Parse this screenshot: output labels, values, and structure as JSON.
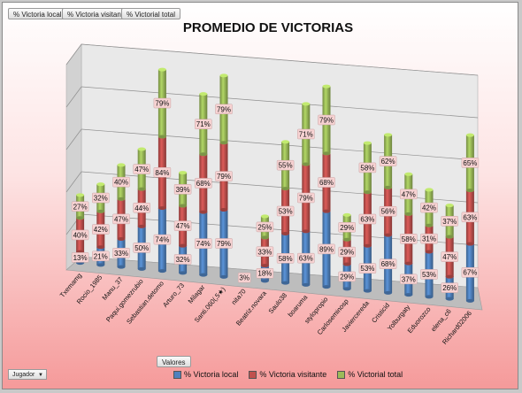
{
  "field_buttons": [
    "% Victoria local",
    "% Victoria visitante",
    "% Victorial total"
  ],
  "values_button": "Valores",
  "filter_button": "Jugador",
  "filter_arrow": "▼",
  "chart_data": {
    "type": "bar",
    "stacked": true,
    "title": "PROMEDIO DE VICTORIAS",
    "categories": [
      "Txemamg",
      "Rocio_1985",
      "Manu_37",
      "Paqui.gomezrubio",
      "Sebastian.detomo",
      "Arturo_73",
      "Milagar",
      "Santi.060(,5★)",
      "nita70",
      "Beatriz.novara",
      "Saulo38",
      "boaruma",
      "stylopropio",
      "Carloseminosp",
      "Javiercereda",
      "Cristicid",
      "Yolburgaty",
      "Eduorozco",
      "elena_c6",
      "Richard02006"
    ],
    "series": [
      {
        "name": "% Victoria local",
        "color": "#4f81bd",
        "values": [
          13,
          21,
          33,
          50,
          74,
          32,
          74,
          79,
          3,
          18,
          58,
          63,
          89,
          29,
          53,
          68,
          37,
          53,
          26,
          67
        ]
      },
      {
        "name": "% Victoria visitante",
        "color": "#c0504d",
        "values": [
          40,
          42,
          47,
          44,
          84,
          47,
          68,
          79,
          null,
          33,
          53,
          79,
          68,
          29,
          63,
          56,
          58,
          31,
          47,
          63
        ]
      },
      {
        "name": "% Victorial total",
        "color": "#9bbb59",
        "values": [
          27,
          32,
          40,
          47,
          79,
          39,
          71,
          79,
          null,
          25,
          55,
          71,
          79,
          29,
          58,
          62,
          47,
          42,
          37,
          65
        ]
      }
    ],
    "ylim": [
      0,
      250
    ],
    "grid": true,
    "legend_position": "bottom"
  }
}
